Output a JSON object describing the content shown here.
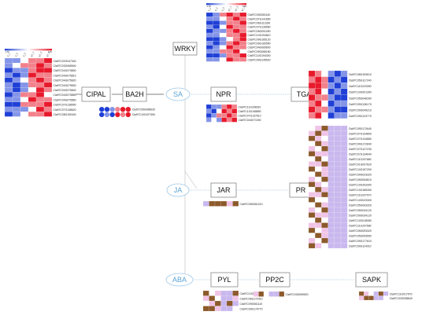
{
  "nodes": {
    "cipal": "CIPAL",
    "ba2h": "BA2H",
    "sa": "SA",
    "npr": "NPR",
    "tga": "TGA",
    "wrky": "WRKY",
    "ja": "JA",
    "jar": "JAR",
    "pr": "PR",
    "aba": "ABA",
    "pyl": "PYL",
    "pp2c": "PP2C",
    "sapk": "SAPK"
  },
  "colors": {
    "high": "#e8192c",
    "low": "#1f3fd6",
    "mid": "#ffffff",
    "brown": "#8c5a2b",
    "pink": "#f0c4e6",
    "lavender": "#c9b8ee",
    "hormone_text": "#5ba3d6"
  },
  "heatmaps": {
    "cipal": {
      "columns": [
        "0_1",
        "0_2",
        "0_3",
        "67_1",
        "67_2",
        "67_3"
      ],
      "key": {
        "low": "-1.50",
        "high": "1.50"
      },
      "genes": [
        "Cla97C02G047340",
        "Cla97C03G065540",
        "Cla97C04G075800",
        "Cla97C04G075810",
        "Cla97C04G075820",
        "Cla97C04G075830",
        "Cla97C04G075840",
        "Cla97C04G075850",
        "Cla97C04G075860",
        "Cla97C07G138590",
        "Cla97C07G138620",
        "Cla97C08G150340"
      ],
      "cells": [
        [
          -1,
          -1,
          0,
          1,
          1,
          2
        ],
        [
          -1,
          0,
          1,
          1,
          2,
          1
        ],
        [
          -2,
          -1,
          -1,
          1,
          2,
          2
        ],
        [
          -1,
          -2,
          -1,
          2,
          1,
          1
        ],
        [
          -2,
          -1,
          0,
          1,
          2,
          1
        ],
        [
          -1,
          -2,
          -1,
          1,
          1,
          2
        ],
        [
          -1,
          -2,
          -1,
          0,
          2,
          1
        ],
        [
          -2,
          -1,
          1,
          1,
          2,
          0
        ],
        [
          -1,
          -1,
          0,
          2,
          1,
          1
        ],
        [
          -2,
          -2,
          1,
          1,
          1,
          2
        ],
        [
          -1,
          -1,
          -1,
          0,
          2,
          1
        ],
        [
          -2,
          -1,
          0,
          1,
          1,
          2
        ]
      ]
    },
    "ba2h": {
      "genes": [
        "Cla97C05G098630",
        "Cla97C10G197350"
      ],
      "cells": [
        [
          -2,
          -2,
          -1,
          1,
          2,
          2
        ],
        [
          -2,
          -1,
          -2,
          2,
          1,
          2
        ]
      ]
    },
    "wrky": {
      "columns": [
        "0_1",
        "0_2",
        "0_3",
        "67_1",
        "67_2",
        "67_3"
      ],
      "key": {
        "low": "-1.50",
        "high": "1.50"
      },
      "genes": [
        "Cla97C05G081140",
        "Cla97C07G141690",
        "Cla97C06G112330",
        "Cla97C07G128960",
        "Cla97C05G091090",
        "Cla97C10G194810",
        "Cla97C09G165120",
        "Cla97C09G169550",
        "Cla97C04G069600",
        "Cla97C09G085180",
        "Cla97C10G194300",
        "Cla97C09G145520"
      ],
      "cells": [
        [
          -2,
          -1,
          1,
          2,
          1,
          2
        ],
        [
          -1,
          -1,
          0,
          1,
          2,
          1
        ],
        [
          -2,
          -2,
          -1,
          1,
          1,
          2
        ],
        [
          -1,
          -2,
          0,
          2,
          1,
          1
        ],
        [
          -2,
          -1,
          -1,
          1,
          2,
          1
        ],
        [
          -1,
          -1,
          0,
          1,
          1,
          2
        ],
        [
          -2,
          -2,
          -1,
          0,
          1,
          2
        ],
        [
          -1,
          -2,
          -1,
          1,
          2,
          1
        ],
        [
          -2,
          -1,
          0,
          2,
          1,
          1
        ],
        [
          -1,
          -1,
          1,
          1,
          2,
          0
        ],
        [
          -2,
          -2,
          -1,
          1,
          1,
          2
        ],
        [
          -1,
          -1,
          0,
          2,
          1,
          1
        ]
      ]
    },
    "npr": {
      "genes": [
        "Cla97C11G208310",
        "Cla97C10G198890",
        "Cla97C07G137610",
        "Cla97C04G071000"
      ],
      "cells": [
        [
          -2,
          -1,
          -1,
          1,
          2,
          1
        ],
        [
          -1,
          -2,
          0,
          2,
          1,
          2
        ],
        [
          -2,
          -1,
          1,
          1,
          2,
          1
        ],
        [
          -1,
          0,
          -1,
          2,
          1,
          2
        ]
      ]
    },
    "tga": {
      "genes": [
        "Cla97C08G153610",
        "Cla97C05G117240",
        "Cla97C11G223390",
        "Cla97C10G001390",
        "Cla97C05G046260",
        "Cla97C09G136170",
        "Cla97C09G049210",
        "Cla97C09G123770"
      ],
      "cells": [
        [
          2,
          1,
          0,
          -1,
          -2,
          -1
        ],
        [
          1,
          2,
          1,
          -2,
          -1,
          -2
        ],
        [
          2,
          2,
          1,
          -1,
          -2,
          -1
        ],
        [
          1,
          2,
          0,
          -2,
          -1,
          -2
        ],
        [
          2,
          1,
          1,
          -1,
          -2,
          -2
        ],
        [
          1,
          2,
          0,
          -2,
          -1,
          -1
        ],
        [
          2,
          1,
          1,
          -1,
          -2,
          -2
        ],
        [
          1,
          2,
          0,
          -2,
          -1,
          -1
        ]
      ]
    },
    "jar": {
      "genes": [
        "Cla97C05G081210"
      ],
      "cells": [
        [
          "L",
          "B",
          "B",
          "B",
          "P",
          "B"
        ]
      ]
    },
    "pr": {
      "genes": [
        "Cla97C09G172640",
        "Cla97C07G134890",
        "Cla97C07G134880",
        "Cla97C09G172840",
        "Cla97C07G127230",
        "Cla97C07G134640",
        "Cla97C11G207680",
        "Cla97C01G007620",
        "Cla97C10G197290",
        "Cla97C09G023320",
        "Cla97C05G054810",
        "Cla97C10G203300",
        "Cla97C10G185260",
        "Cla97C11G207970",
        "Cla97C10G023300",
        "Cla97C05G093320",
        "Cla97C05G034120",
        "Cla97C09G034120",
        "Cla97C10G018080",
        "Cla97C11G207680",
        "Cla97C05G093320",
        "Cla97C05G093550",
        "Cla97C09G177610",
        "Cla97C09G114010"
      ],
      "cells": [
        [
          "W",
          "P",
          "B",
          "L",
          "L",
          "L"
        ],
        [
          "P",
          "B",
          "P",
          "L",
          "L",
          "L"
        ],
        [
          "B",
          "P",
          "W",
          "L",
          "L",
          "L"
        ],
        [
          "W",
          "B",
          "P",
          "L",
          "L",
          "L"
        ],
        [
          "P",
          "W",
          "B",
          "L",
          "L",
          "L"
        ],
        [
          "B",
          "P",
          "P",
          "L",
          "L",
          "L"
        ],
        [
          "W",
          "B",
          "W",
          "L",
          "L",
          "L"
        ],
        [
          "P",
          "P",
          "B",
          "L",
          "L",
          "L"
        ],
        [
          "B",
          "W",
          "P",
          "L",
          "L",
          "L"
        ],
        [
          "W",
          "B",
          "P",
          "L",
          "L",
          "L"
        ],
        [
          "P",
          "W",
          "B",
          "L",
          "L",
          "L"
        ],
        [
          "B",
          "P",
          "W",
          "L",
          "L",
          "L"
        ],
        [
          "W",
          "B",
          "P",
          "L",
          "L",
          "L"
        ],
        [
          "P",
          "P",
          "B",
          "L",
          "L",
          "L"
        ],
        [
          "B",
          "W",
          "W",
          "L",
          "L",
          "L"
        ],
        [
          "W",
          "B",
          "P",
          "L",
          "L",
          "L"
        ],
        [
          "P",
          "W",
          "B",
          "L",
          "L",
          "L"
        ],
        [
          "B",
          "P",
          "P",
          "L",
          "L",
          "L"
        ],
        [
          "W",
          "B",
          "W",
          "L",
          "L",
          "L"
        ],
        [
          "P",
          "P",
          "B",
          "L",
          "L",
          "L"
        ],
        [
          "B",
          "W",
          "P",
          "L",
          "L",
          "L"
        ],
        [
          "W",
          "B",
          "P",
          "L",
          "L",
          "L"
        ],
        [
          "P",
          "W",
          "B",
          "L",
          "L",
          "L"
        ],
        [
          "B",
          "P",
          "W",
          "L",
          "L",
          "L"
        ]
      ]
    },
    "pyl": {
      "genes": [
        "Cla97C10G186260",
        "Cla97C06G172410",
        "Cla97C09G061110",
        "Cla97C09G174770"
      ],
      "cells": [
        [
          "B",
          "W",
          "P",
          "L",
          "L",
          "B"
        ],
        [
          "P",
          "B",
          "W",
          "L",
          "L",
          "P"
        ],
        [
          "W",
          "P",
          "B",
          "L",
          "B",
          "L"
        ],
        [
          "B",
          "B",
          "P",
          "L",
          "L",
          "W"
        ]
      ]
    },
    "pp2c": {
      "genes": [
        "Cla97C03G069520"
      ],
      "cells": [
        [
          "P",
          "B",
          "W",
          "L",
          "L",
          "B"
        ]
      ]
    },
    "sapk": {
      "genes": [
        "Cla97C11G017970",
        "Cla97C02G038840"
      ],
      "cells": [
        [
          "B",
          "P",
          "W",
          "L",
          "B",
          "L"
        ],
        [
          "P",
          "B",
          "B",
          "L",
          "L",
          "W"
        ]
      ]
    }
  }
}
